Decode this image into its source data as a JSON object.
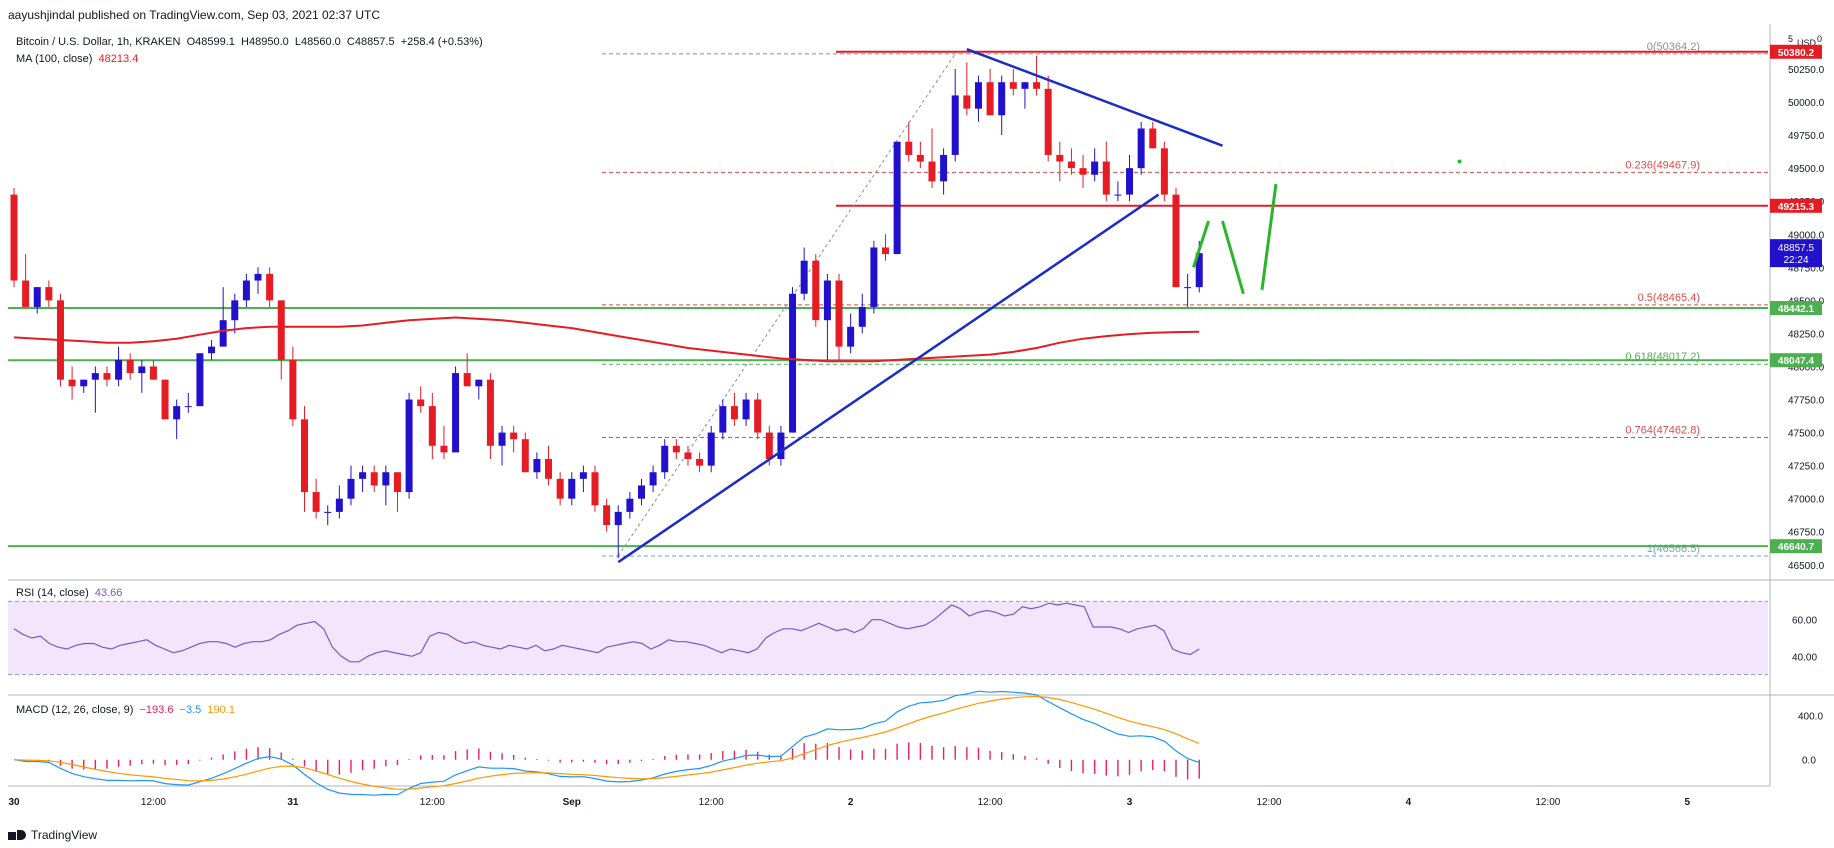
{
  "header": {
    "publisher": "aayushjindal published on TradingView.com, Sep 03, 2021 02:37 UTC"
  },
  "legend": {
    "symbol": "Bitcoin / U.S. Dollar, 1h, KRAKEN",
    "o": "O48599.1",
    "h": "H48950.0",
    "l": "L48560.0",
    "c": "C48857.5",
    "chg": "+258.4 (+0.53%)",
    "ma": "MA (100, close)",
    "ma_val": "48213.4",
    "rsi": "RSI (14, close)",
    "rsi_val": "43.66",
    "macd": "MACD (12, 26, close, 9)",
    "macd_hist": "−193.6",
    "macd_line": "−3.5",
    "macd_sig": "190.1"
  },
  "footer": {
    "brand": "TradingView"
  },
  "colors": {
    "up": "#2111cc",
    "down": "#e51c23",
    "ma": "#e51c23",
    "trend": "#1a2bc8",
    "fib": "#e04b4b",
    "green": "#4caf50",
    "rsi": "#7e57c2",
    "macd": "#2196f3",
    "signal": "#ff9800"
  },
  "chart_data": {
    "type": "candlestick",
    "symbol": "BTCUSD",
    "interval": "1h",
    "currency": "USD",
    "y_ticks": [
      46500,
      46750,
      47000,
      47250,
      47500,
      47750,
      48000,
      48250,
      48500,
      48750,
      49000,
      49250,
      49500,
      49750,
      50000,
      50250
    ],
    "x_labels": [
      {
        "label": "30",
        "index": 0
      },
      {
        "label": "12:00",
        "index": 12
      },
      {
        "label": "31",
        "index": 24
      },
      {
        "label": "12:00",
        "index": 36
      },
      {
        "label": "Sep",
        "index": 48
      },
      {
        "label": "12:00",
        "index": 60
      },
      {
        "label": "2",
        "index": 72
      },
      {
        "label": "12:00",
        "index": 84
      },
      {
        "label": "3",
        "index": 96
      },
      {
        "label": "12:00",
        "index": 108
      },
      {
        "label": "4",
        "index": 120
      },
      {
        "label": "12:00",
        "index": 132
      },
      {
        "label": "5",
        "index": 144
      }
    ],
    "candles": [
      [
        49300,
        49350,
        48600,
        48650
      ],
      [
        48650,
        48850,
        48450,
        48450
      ],
      [
        48450,
        48600,
        48400,
        48600
      ],
      [
        48600,
        48650,
        48450,
        48500
      ],
      [
        48500,
        48550,
        47850,
        47900
      ],
      [
        47900,
        48000,
        47750,
        47850
      ],
      [
        47850,
        47900,
        47800,
        47900
      ],
      [
        47900,
        48000,
        47650,
        47950
      ],
      [
        47950,
        48000,
        47850,
        47900
      ],
      [
        47900,
        48150,
        47850,
        48050
      ],
      [
        48050,
        48100,
        47900,
        47950
      ],
      [
        47950,
        48050,
        47800,
        48000
      ],
      [
        48000,
        48050,
        47900,
        47900
      ],
      [
        47900,
        47900,
        47600,
        47600
      ],
      [
        47600,
        47750,
        47450,
        47700
      ],
      [
        47700,
        47800,
        47650,
        47700
      ],
      [
        47700,
        48100,
        47700,
        48100
      ],
      [
        48100,
        48200,
        48050,
        48150
      ],
      [
        48150,
        48600,
        48150,
        48350
      ],
      [
        48350,
        48550,
        48250,
        48500
      ],
      [
        48500,
        48700,
        48450,
        48650
      ],
      [
        48650,
        48750,
        48550,
        48700
      ],
      [
        48700,
        48750,
        48450,
        48500
      ],
      [
        48500,
        48500,
        47900,
        48050
      ],
      [
        48050,
        48150,
        47550,
        47600
      ],
      [
        47600,
        47700,
        46900,
        47050
      ],
      [
        47050,
        47150,
        46850,
        46900
      ],
      [
        46900,
        46950,
        46800,
        46900
      ],
      [
        46900,
        47100,
        46850,
        47000
      ],
      [
        47000,
        47250,
        46950,
        47150
      ],
      [
        47150,
        47250,
        47050,
        47200
      ],
      [
        47200,
        47250,
        47050,
        47100
      ],
      [
        47100,
        47250,
        46950,
        47200
      ],
      [
        47200,
        47200,
        46900,
        47050
      ],
      [
        47050,
        47800,
        47000,
        47750
      ],
      [
        47750,
        47850,
        47650,
        47700
      ],
      [
        47700,
        47800,
        47300,
        47400
      ],
      [
        47400,
        47550,
        47300,
        47350
      ],
      [
        47350,
        48000,
        47350,
        47950
      ],
      [
        47950,
        48100,
        47850,
        47850
      ],
      [
        47850,
        47900,
        47750,
        47900
      ],
      [
        47900,
        47950,
        47300,
        47400
      ],
      [
        47400,
        47550,
        47250,
        47500
      ],
      [
        47500,
        47550,
        47350,
        47450
      ],
      [
        47450,
        47500,
        47200,
        47200
      ],
      [
        47200,
        47350,
        47150,
        47300
      ],
      [
        47300,
        47400,
        47100,
        47150
      ],
      [
        47150,
        47200,
        46950,
        47000
      ],
      [
        47000,
        47200,
        46950,
        47150
      ],
      [
        47150,
        47250,
        47050,
        47200
      ],
      [
        47200,
        47250,
        46900,
        46950
      ],
      [
        46950,
        47000,
        46750,
        46800
      ],
      [
        46800,
        46950,
        46550,
        46900
      ],
      [
        46900,
        47050,
        46850,
        47000
      ],
      [
        47000,
        47150,
        46950,
        47100
      ],
      [
        47100,
        47250,
        47050,
        47200
      ],
      [
        47200,
        47450,
        47150,
        47400
      ],
      [
        47400,
        47450,
        47300,
        47350
      ],
      [
        47350,
        47400,
        47250,
        47300
      ],
      [
        47300,
        47350,
        47200,
        47250
      ],
      [
        47250,
        47550,
        47200,
        47500
      ],
      [
        47500,
        47750,
        47450,
        47700
      ],
      [
        47700,
        47800,
        47550,
        47600
      ],
      [
        47600,
        47800,
        47550,
        47750
      ],
      [
        47750,
        47800,
        47450,
        47500
      ],
      [
        47500,
        47550,
        47250,
        47300
      ],
      [
        47300,
        47550,
        47250,
        47500
      ],
      [
        47500,
        48600,
        47500,
        48550
      ],
      [
        48550,
        48900,
        48500,
        48800
      ],
      [
        48800,
        48850,
        48300,
        48350
      ],
      [
        48350,
        48700,
        48050,
        48650
      ],
      [
        48650,
        48700,
        48050,
        48150
      ],
      [
        48150,
        48400,
        48100,
        48300
      ],
      [
        48300,
        48550,
        48250,
        48450
      ],
      [
        48450,
        48950,
        48400,
        48900
      ],
      [
        48900,
        49000,
        48800,
        48850
      ],
      [
        48850,
        49700,
        48850,
        49700
      ],
      [
        49700,
        49850,
        49550,
        49600
      ],
      [
        49600,
        49700,
        49500,
        49550
      ],
      [
        49550,
        49800,
        49350,
        49400
      ],
      [
        49400,
        49650,
        49300,
        49600
      ],
      [
        49600,
        50250,
        49550,
        50050
      ],
      [
        50050,
        50300,
        49900,
        49950
      ],
      [
        49950,
        50200,
        49850,
        50150
      ],
      [
        50150,
        50250,
        49900,
        49900
      ],
      [
        49900,
        50200,
        49750,
        50150
      ],
      [
        50150,
        50250,
        50050,
        50100
      ],
      [
        50100,
        50150,
        49950,
        50150
      ],
      [
        50150,
        50350,
        50050,
        50100
      ],
      [
        50100,
        50200,
        49550,
        49600
      ],
      [
        49600,
        49700,
        49400,
        49550
      ],
      [
        49550,
        49650,
        49450,
        49500
      ],
      [
        49500,
        49600,
        49350,
        49450
      ],
      [
        49450,
        49650,
        49400,
        49550
      ],
      [
        49550,
        49700,
        49250,
        49300
      ],
      [
        49300,
        49400,
        49250,
        49300
      ],
      [
        49300,
        49600,
        49250,
        49500
      ],
      [
        49500,
        49850,
        49450,
        49800
      ],
      [
        49800,
        49850,
        49650,
        49650
      ],
      [
        49650,
        49700,
        49250,
        49300
      ],
      [
        49300,
        49350,
        48600,
        48600
      ],
      [
        48600,
        48700,
        48450,
        48600
      ],
      [
        48600,
        48950,
        48560,
        48857
      ]
    ],
    "ma100": [
      48220,
      48210,
      48200,
      48190,
      48180,
      48180,
      48190,
      48210,
      48240,
      48270,
      48290,
      48300,
      48300,
      48300,
      48300,
      48310,
      48330,
      48350,
      48360,
      48370,
      48360,
      48350,
      48330,
      48310,
      48290,
      48260,
      48230,
      48200,
      48170,
      48140,
      48120,
      48100,
      48080,
      48060,
      48050,
      48040,
      48040,
      48040,
      48050,
      48060,
      48070,
      48080,
      48090,
      48110,
      48140,
      48180,
      48210,
      48230,
      48245,
      48255,
      48260,
      48262
    ],
    "ma100_start_index": 0,
    "ma100_step": 2,
    "ma100_label": "48213.4",
    "fib_levels": [
      {
        "label": "0(50364.2)",
        "price": 50364.2
      },
      {
        "label": "0.236(49467.9)",
        "price": 49467.9
      },
      {
        "label": "0.5(48465.4)",
        "price": 48465.4
      },
      {
        "label": "0.618(48017.2)",
        "price": 48017.2
      },
      {
        "label": "0.764(47462.8)",
        "price": 47462.8
      },
      {
        "label": "1(46566.5)",
        "price": 46566.5
      }
    ],
    "horizontal_levels": [
      {
        "price": 50380.2,
        "label": "50380.2",
        "color": "#e51c23"
      },
      {
        "price": 49215.3,
        "label": "49215.3",
        "color": "#e51c23"
      },
      {
        "price": 48442.1,
        "label": "48442.1",
        "color": "#4caf50"
      },
      {
        "price": 48047.4,
        "label": "48047.4",
        "color": "#4caf50"
      },
      {
        "price": 46640.7,
        "label": "46640.7",
        "color": "#4caf50"
      }
    ],
    "current_price": {
      "label": "48857.5",
      "countdown": "22:24"
    },
    "top_labels": [
      "5",
      "USD",
      "0"
    ],
    "rsi": {
      "label": "RSI (14, close)",
      "value": "43.66",
      "ticks": [
        40,
        60
      ],
      "band": [
        30,
        70
      ],
      "values": [
        55,
        52,
        50,
        51,
        47,
        45,
        44,
        46,
        47,
        47,
        45,
        44,
        46,
        47,
        48,
        49,
        46,
        44,
        42,
        43,
        45,
        47,
        48,
        48,
        47,
        45,
        47,
        48,
        48,
        49,
        52,
        54,
        57,
        58,
        59,
        55,
        45,
        40,
        37,
        37,
        40,
        42,
        43,
        42,
        41,
        40,
        42,
        51,
        53,
        52,
        49,
        47,
        48,
        46,
        45,
        44,
        46,
        45,
        44,
        46,
        43,
        44,
        46,
        45,
        44,
        43,
        42,
        45,
        46,
        47,
        48,
        47,
        44,
        46,
        49,
        48,
        48,
        47,
        46,
        44,
        42,
        44,
        43,
        42,
        44,
        50,
        53,
        55,
        55,
        54,
        56,
        58,
        56,
        54,
        55,
        53,
        55,
        60,
        60,
        58,
        56,
        55,
        56,
        57,
        60,
        64,
        68,
        66,
        62,
        64,
        65,
        64,
        62,
        63,
        67,
        66,
        67,
        69,
        68,
        69,
        68,
        67,
        56,
        56,
        56,
        55,
        53,
        55,
        56,
        57,
        54,
        44,
        42,
        41,
        44
      ]
    },
    "macd": {
      "label": "MACD (12, 26, close, 9)",
      "hist": "−193.6",
      "macd": "−3.5",
      "signal": "190.1",
      "ticks": [
        "400.0",
        "0.0"
      ]
    }
  }
}
